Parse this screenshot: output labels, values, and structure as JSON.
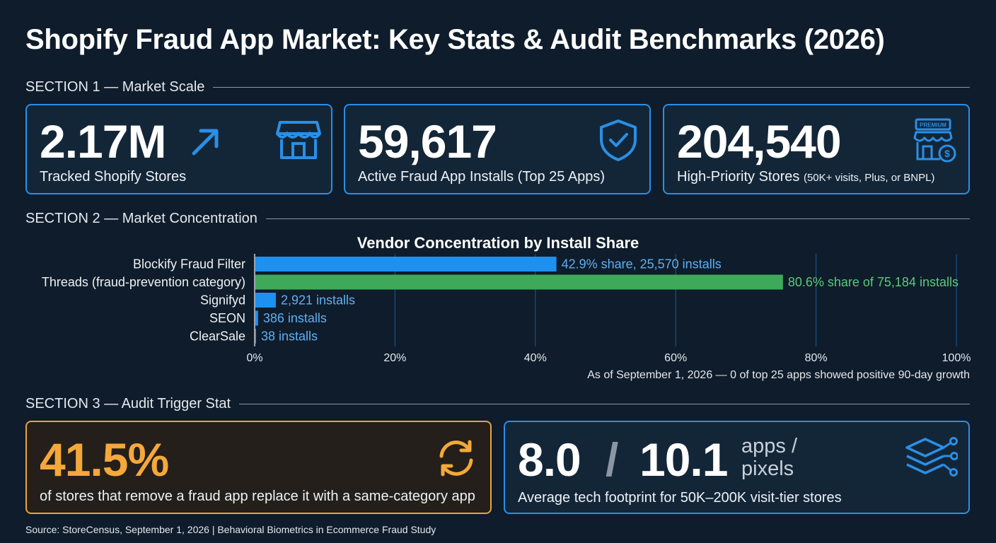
{
  "title": "Shopify Fraud App Market: Key Stats & Audit Benchmarks (2026)",
  "sections": {
    "s1": "SECTION 1 — Market Scale",
    "s2": "SECTION 2 — Market Concentration",
    "s3": "SECTION 3 — Audit Trigger Stat"
  },
  "cards": {
    "stores": {
      "value": "2.17M",
      "label": "Tracked Shopify Stores",
      "icon": "storefront-icon",
      "trend_icon": "trend-up-arrow-icon"
    },
    "installs": {
      "value": "59,617",
      "label": "Active Fraud App Installs (Top 25 Apps)",
      "icon": "shield-check-icon"
    },
    "priority": {
      "value": "204,540",
      "label": "High-Priority Stores",
      "label_small": "(50K+ visits, Plus, or BNPL)",
      "icon": "premium-store-icon",
      "icon_text": "PREMIUM"
    },
    "replace": {
      "value": "41.5%",
      "label": "of stores that remove a fraud app replace it with a same-category app",
      "icon": "refresh-cycle-icon"
    },
    "footprint": {
      "value_a": "8.0",
      "slash": "/",
      "value_b": "10.1",
      "unit_a": "apps /",
      "unit_b": "pixels",
      "label": "Average tech footprint for 50K–200K visit-tier stores",
      "icon": "layers-network-icon"
    }
  },
  "chart_data": {
    "type": "bar",
    "orientation": "horizontal",
    "title": "Vendor Concentration by Install Share",
    "categories": [
      "Blockify Fraud Filter",
      "Threads (fraud-prevention category)",
      "Signifyd",
      "SEON",
      "ClearSale"
    ],
    "values": [
      42.9,
      75.184,
      2.921,
      0.386,
      0.038
    ],
    "data_labels": [
      "42.9% share, 25,570 installs",
      "80.6% share of 75,184 installs",
      "2,921 installs",
      "386 installs",
      "38 installs"
    ],
    "colors": [
      "#1e90f0",
      "#3fa95a",
      "#1e90f0",
      "#1e90f0",
      "#1e90f0"
    ],
    "label_colors": [
      "#5fb0f2",
      "#5cc97a",
      "#5fb0f2",
      "#5fb0f2",
      "#5fb0f2"
    ],
    "xlim": [
      0,
      100
    ],
    "xticks": [
      0,
      20,
      40,
      60,
      80,
      100
    ],
    "xtick_labels": [
      "0%",
      "20%",
      "40%",
      "60%",
      "80%",
      "100%"
    ],
    "grid": true,
    "note": "As of September 1, 2026 — 0 of top 25 apps showed positive 90-day growth"
  },
  "source": "Source: StoreCensus, September 1, 2026 | Behavioral Biometrics in Ecommerce Fraud Study"
}
